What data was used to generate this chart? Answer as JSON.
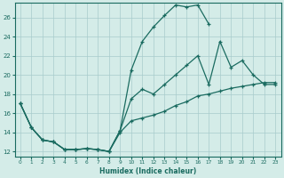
{
  "xlabel": "Humidex (Indice chaleur)",
  "bg_color": "#d4ece8",
  "grid_color": "#a8cccc",
  "line_color": "#1a6b60",
  "xlim": [
    -0.5,
    23.5
  ],
  "ylim": [
    11.5,
    27.5
  ],
  "xticks": [
    0,
    1,
    2,
    3,
    4,
    5,
    6,
    7,
    8,
    9,
    10,
    11,
    12,
    13,
    14,
    15,
    16,
    17,
    18,
    19,
    20,
    21,
    22,
    23
  ],
  "yticks": [
    12,
    14,
    16,
    18,
    20,
    22,
    24,
    26
  ],
  "line1_x": [
    0,
    1,
    2,
    3,
    4,
    5,
    6,
    7,
    8,
    9,
    10,
    11,
    12,
    13,
    14,
    15,
    16,
    17
  ],
  "line1_y": [
    17.0,
    14.5,
    13.2,
    13.0,
    12.2,
    12.2,
    12.3,
    12.2,
    12.0,
    14.2,
    20.5,
    23.5,
    25.0,
    26.2,
    27.3,
    27.1,
    27.3,
    25.3
  ],
  "line2_x": [
    0,
    1,
    2,
    3,
    4,
    5,
    6,
    7,
    8,
    9,
    10,
    11,
    12,
    13,
    14,
    15,
    16,
    17,
    18,
    19,
    20,
    21,
    22,
    23
  ],
  "line2_y": [
    17.0,
    14.5,
    13.2,
    13.0,
    12.2,
    12.2,
    12.3,
    12.2,
    12.0,
    14.2,
    17.5,
    18.5,
    18.0,
    19.0,
    20.0,
    21.0,
    22.0,
    19.0,
    23.5,
    20.8,
    21.5,
    20.0,
    19.0,
    19.0
  ],
  "line3_x": [
    0,
    1,
    2,
    3,
    4,
    5,
    6,
    7,
    8,
    9,
    10,
    11,
    12,
    13,
    14,
    15,
    16,
    17,
    18,
    19,
    20,
    21,
    22,
    23
  ],
  "line3_y": [
    17.0,
    14.5,
    13.2,
    13.0,
    12.2,
    12.2,
    12.3,
    12.2,
    12.0,
    14.0,
    15.2,
    15.5,
    15.8,
    16.2,
    16.8,
    17.2,
    17.8,
    18.0,
    18.3,
    18.6,
    18.8,
    19.0,
    19.2,
    19.2
  ]
}
